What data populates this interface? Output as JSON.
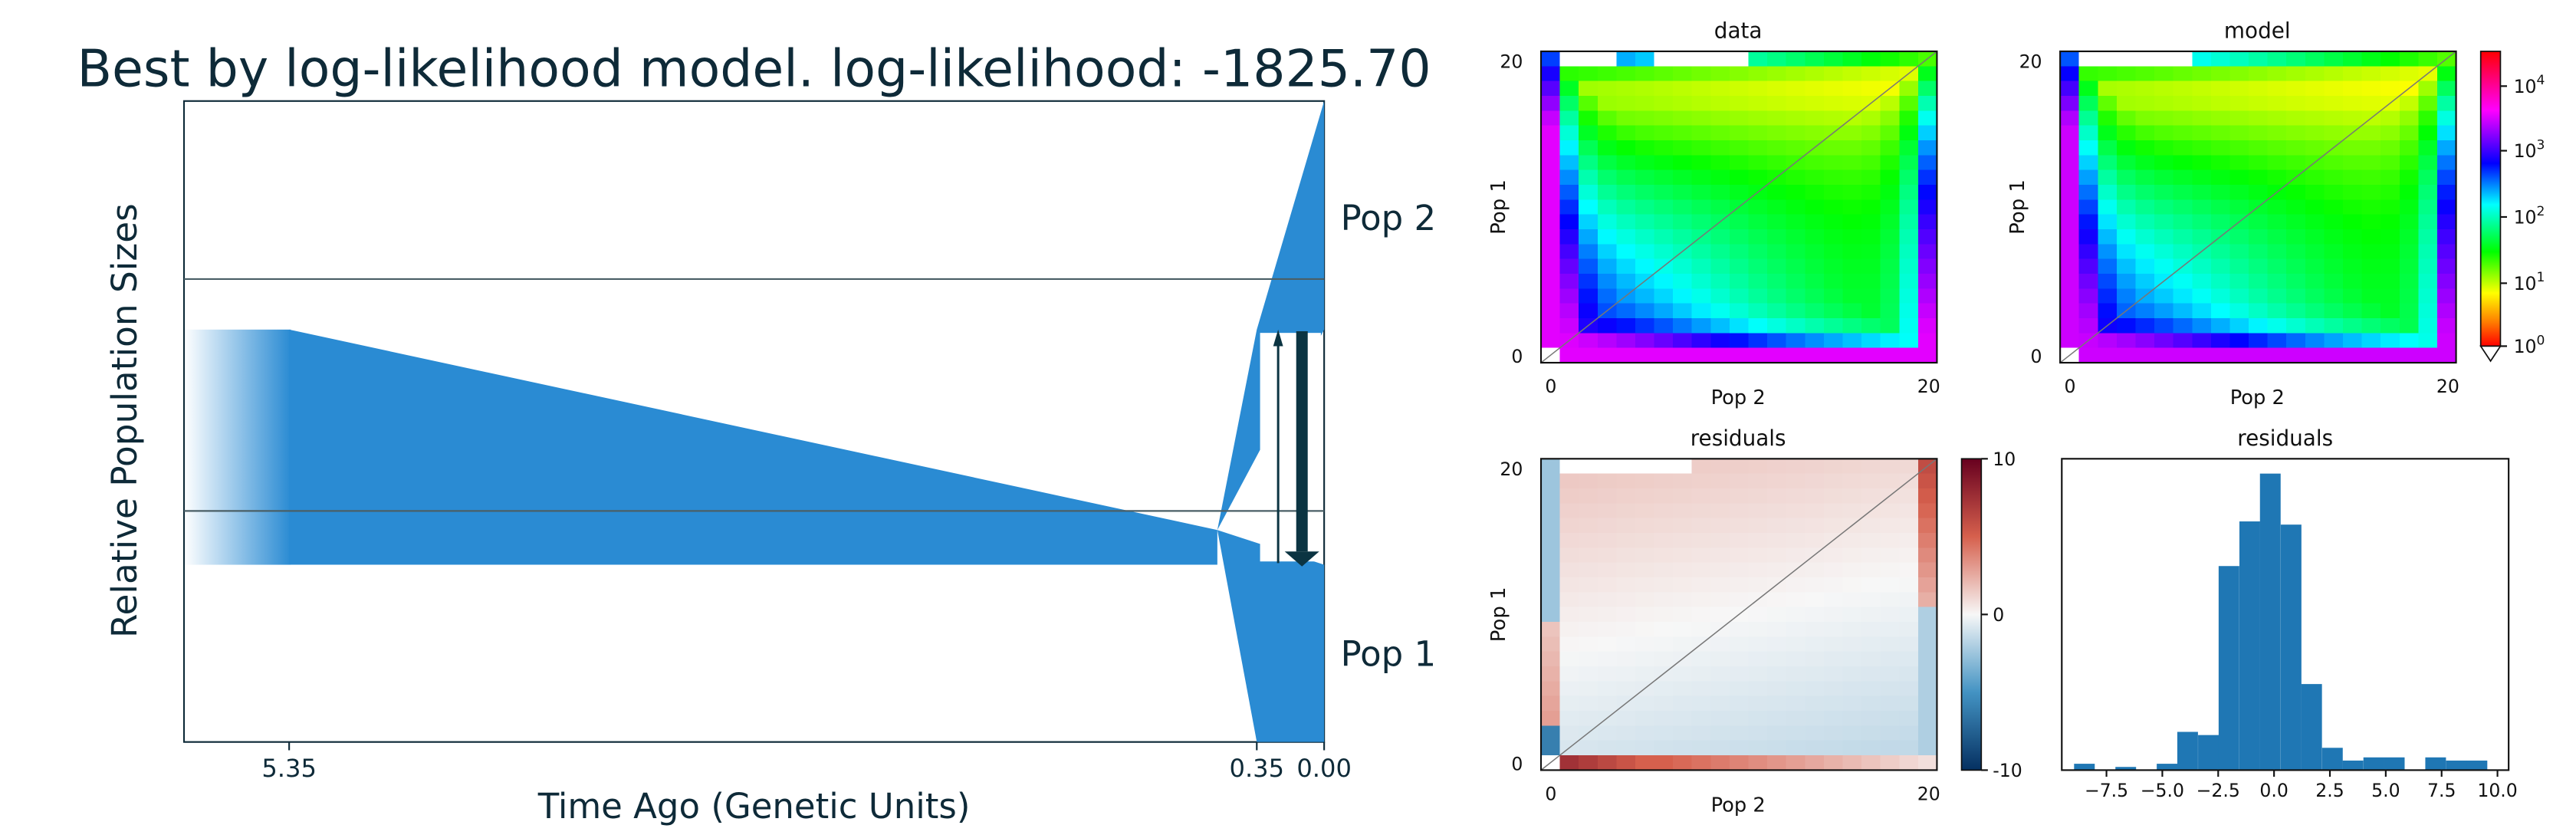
{
  "figure": {
    "title": "Best by log-likelihood model. log-likelihood: -1825.70"
  },
  "colors": {
    "population_fill": "#2a8bd3",
    "dark_text": "#0e2a38",
    "migration_arrow": "#0b3442",
    "hist_bar": "#1f77b4"
  },
  "chart_data": [
    {
      "type": "area",
      "name": "demographic-model",
      "xlabel": "Time Ago (Genetic Units)",
      "ylabel": "Relative Population Sizes",
      "x_ticks": [
        {
          "value": 5.35,
          "label": "5.35"
        },
        {
          "value": 0.35,
          "label": "0.35"
        },
        {
          "value": 0.0,
          "label": "0.00"
        }
      ],
      "populations": [
        {
          "label": "Pop 2"
        },
        {
          "label": "Pop 1"
        }
      ],
      "split_time": 0.35,
      "size_change_time": 5.35
    },
    {
      "type": "heatmap",
      "title": "data",
      "xlabel": "Pop 2",
      "ylabel": "Pop 1",
      "x_ticks": [
        "0",
        "20"
      ],
      "y_ticks": [
        "0",
        "20"
      ],
      "grid_size": 21,
      "scale": "log"
    },
    {
      "type": "heatmap",
      "title": "model",
      "xlabel": "Pop 2",
      "ylabel": "Pop 1",
      "x_ticks": [
        "0",
        "20"
      ],
      "y_ticks": [
        "0",
        "20"
      ],
      "grid_size": 21,
      "scale": "log",
      "colorbar_ticks": [
        "10^0",
        "10^1",
        "10^2",
        "10^3",
        "10^4"
      ]
    },
    {
      "type": "heatmap",
      "title": "residuals",
      "xlabel": "Pop 2",
      "ylabel": "Pop 1",
      "x_ticks": [
        "0",
        "20"
      ],
      "y_ticks": [
        "0",
        "20"
      ],
      "grid_size": 21,
      "colorbar_ticks": [
        "10",
        "0",
        "-10"
      ],
      "colorbar_range": [
        -10,
        10
      ]
    },
    {
      "type": "bar",
      "title": "residuals",
      "x_ticks": [
        "−7.5",
        "−5.0",
        "−2.5",
        "0.0",
        "2.5",
        "5.0",
        "7.5",
        "10.0"
      ],
      "xlim": [
        -9.5,
        10.5
      ],
      "bin_width": 0.925,
      "bins": [
        {
          "x0": -8.95,
          "count": 2
        },
        {
          "x0": -7.1,
          "count": 1
        },
        {
          "x0": -5.25,
          "count": 2
        },
        {
          "x0": -4.33,
          "count": 12
        },
        {
          "x0": -3.4,
          "count": 11
        },
        {
          "x0": -2.48,
          "count": 64
        },
        {
          "x0": -1.55,
          "count": 78
        },
        {
          "x0": -0.63,
          "count": 93
        },
        {
          "x0": 0.3,
          "count": 77
        },
        {
          "x0": 1.22,
          "count": 27
        },
        {
          "x0": 2.15,
          "count": 7
        },
        {
          "x0": 3.07,
          "count": 3
        },
        {
          "x0": 4.0,
          "count": 4
        },
        {
          "x0": 4.92,
          "count": 4
        },
        {
          "x0": 6.77,
          "count": 4
        },
        {
          "x0": 7.7,
          "count": 3
        },
        {
          "x0": 8.62,
          "count": 3
        }
      ]
    }
  ]
}
